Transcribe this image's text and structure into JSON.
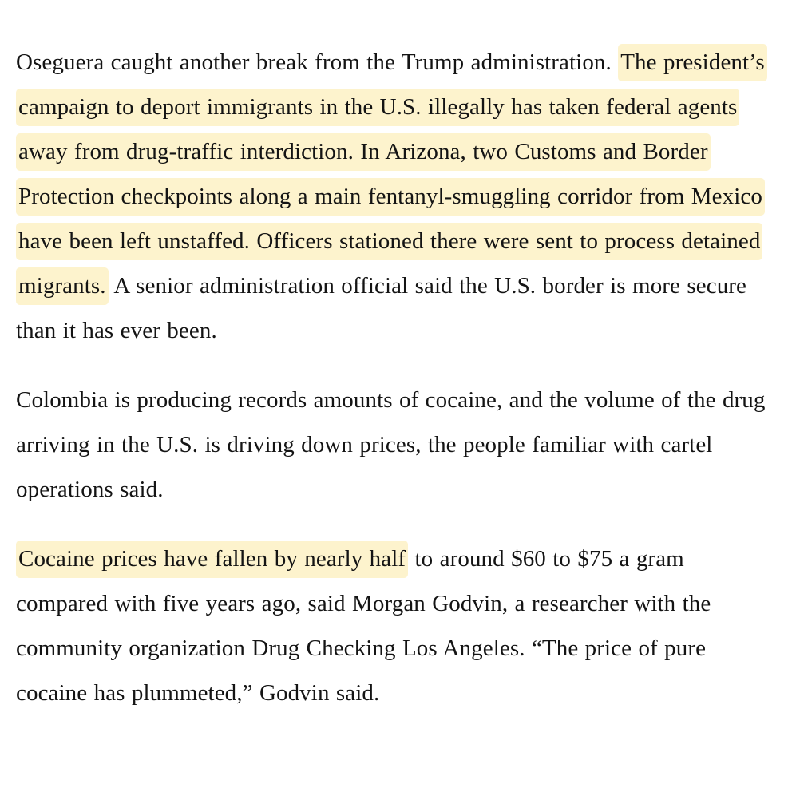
{
  "page": {
    "background_color": "#ffffff",
    "text_color": "#141414",
    "highlight_color": "#fdf3cd"
  },
  "article": {
    "paragraphs": [
      {
        "segments": [
          {
            "text": "Oseguera caught another break from the Trump administration. ",
            "highlight": false
          },
          {
            "text": "The president’s campaign to deport immigrants in the U.S. illegally has taken federal agents away from drug-traffic interdiction. In Arizona, two Customs and Border Protection checkpoints along a main fentanyl-smuggling corridor from Mexico have been left unstaffed. Officers stationed there were sent to process detained migrants.",
            "highlight": true
          },
          {
            "text": " A senior administration official said the U.S. border is more secure than it has ever been.",
            "highlight": false
          }
        ]
      },
      {
        "segments": [
          {
            "text": "Colombia is producing records amounts of cocaine, and the volume of the drug arriving in the U.S. is driving down prices, the people familiar with cartel operations said.",
            "highlight": false
          }
        ]
      },
      {
        "segments": [
          {
            "text": "Cocaine prices have fallen by nearly half",
            "highlight": true
          },
          {
            "text": " to around $60 to $75 a gram compared with five years ago, said Morgan Godvin, a researcher with the community organization Drug Checking Los Angeles. “The price of pure cocaine has plummeted,” Godvin said.",
            "highlight": false
          }
        ]
      }
    ]
  }
}
